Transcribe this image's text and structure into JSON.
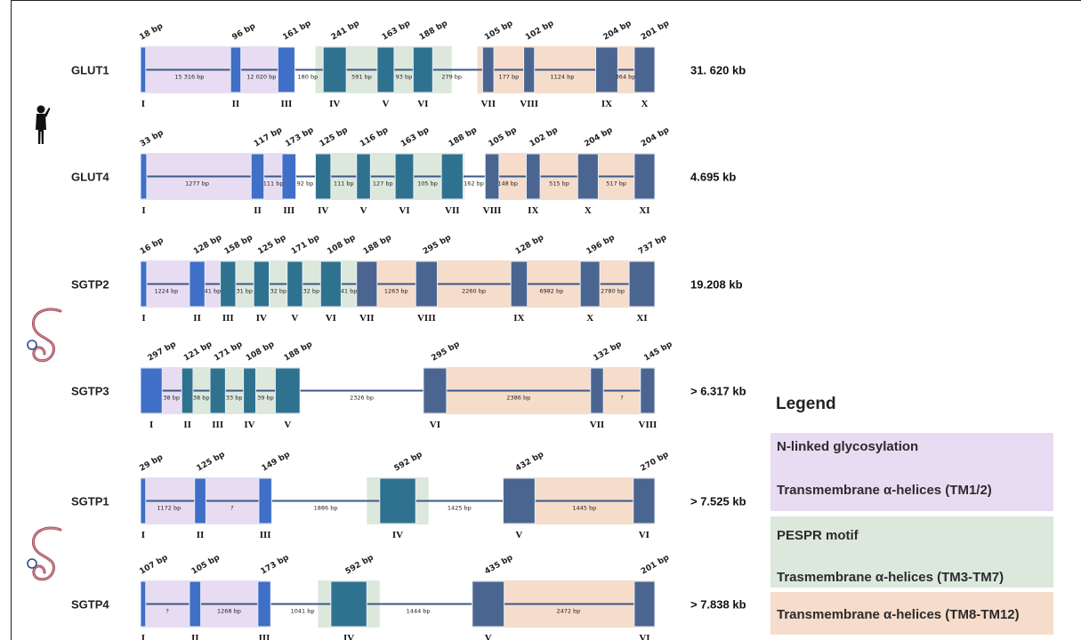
{
  "colors": {
    "purple_region": "#e8dcf2",
    "green_region": "#dde8dd",
    "orange_region": "#f6dccb",
    "exon_blue": "#3f6fc6",
    "exon_teal": "#2f728f",
    "exon_slate": "#4a6690",
    "intron_line": "#3a5a88"
  },
  "genes": [
    {
      "name": "GLUT1",
      "size": "31. 620 kb",
      "regions": [
        {
          "color": "purple",
          "from": 0,
          "to": 2.7
        },
        {
          "color": "green",
          "from": 3.4,
          "to": 6.05
        },
        {
          "color": "orange",
          "from": 6.55,
          "to": 10
        }
      ],
      "exons": [
        {
          "roman": "I",
          "bp": "18 bp",
          "x": 0,
          "w": 0.1,
          "color": "blue"
        },
        {
          "roman": "II",
          "bp": "96 bp",
          "x": 1.75,
          "w": 0.2,
          "color": "blue"
        },
        {
          "roman": "III",
          "bp": "161 bp",
          "x": 2.67,
          "w": 0.33,
          "color": "blue"
        },
        {
          "roman": "IV",
          "bp": "241 bp",
          "x": 3.55,
          "w": 0.45,
          "color": "teal"
        },
        {
          "roman": "V",
          "bp": "163 bp",
          "x": 4.6,
          "w": 0.33,
          "color": "teal"
        },
        {
          "roman": "VI",
          "bp": "188 bp",
          "x": 5.3,
          "w": 0.38,
          "color": "teal"
        },
        {
          "roman": "VII",
          "bp": "105 bp",
          "x": 6.65,
          "w": 0.22,
          "color": "slate"
        },
        {
          "roman": "VIII",
          "bp": "102 bp",
          "x": 7.45,
          "w": 0.21,
          "color": "slate"
        },
        {
          "roman": "IX",
          "bp": "204 bp",
          "x": 8.85,
          "w": 0.43,
          "color": "slate"
        },
        {
          "roman": "X",
          "bp": "201 bp",
          "x": 9.6,
          "w": 0.4,
          "color": "slate"
        }
      ],
      "introns": [
        {
          "label": "15 316 bp",
          "x": 0.95
        },
        {
          "label": "12 020 bp",
          "x": 2.35
        },
        {
          "label": "180 bp",
          "x": 3.25
        },
        {
          "label": "591 bp",
          "x": 4.3
        },
        {
          "label": "93 bp",
          "x": 5.12
        },
        {
          "label": "279 bp",
          "x": 6.05
        },
        {
          "label": "177 bp",
          "x": 7.16
        },
        {
          "label": "1124 bp",
          "x": 8.2
        },
        {
          "label": "364 bp",
          "x": 9.43
        }
      ]
    },
    {
      "name": "GLUT4",
      "size": "4.695 kb",
      "regions": [
        {
          "color": "purple",
          "from": 0,
          "to": 2.8
        },
        {
          "color": "green",
          "from": 3.4,
          "to": 6.3
        },
        {
          "color": "orange",
          "from": 6.7,
          "to": 10
        }
      ],
      "exons": [
        {
          "roman": "I",
          "bp": "33 bp",
          "x": 0,
          "w": 0.12,
          "color": "blue"
        },
        {
          "roman": "II",
          "bp": "117 bp",
          "x": 2.15,
          "w": 0.25,
          "color": "blue"
        },
        {
          "roman": "III",
          "bp": "173 bp",
          "x": 2.75,
          "w": 0.27,
          "color": "blue"
        },
        {
          "roman": "IV",
          "bp": "125 bp",
          "x": 3.4,
          "w": 0.3,
          "color": "teal"
        },
        {
          "roman": "V",
          "bp": "116 bp",
          "x": 4.2,
          "w": 0.27,
          "color": "teal"
        },
        {
          "roman": "VI",
          "bp": "163 bp",
          "x": 4.95,
          "w": 0.36,
          "color": "teal"
        },
        {
          "roman": "VII",
          "bp": "188 bp",
          "x": 5.85,
          "w": 0.42,
          "color": "teal"
        },
        {
          "roman": "VIII",
          "bp": "105 bp",
          "x": 6.7,
          "w": 0.27,
          "color": "slate"
        },
        {
          "roman": "IX",
          "bp": "102 bp",
          "x": 7.5,
          "w": 0.27,
          "color": "slate"
        },
        {
          "roman": "X",
          "bp": "204 bp",
          "x": 8.5,
          "w": 0.4,
          "color": "slate"
        },
        {
          "roman": "XI",
          "bp": "204 bp",
          "x": 9.6,
          "w": 0.4,
          "color": "slate"
        }
      ],
      "introns": [
        {
          "label": "1277 bp",
          "x": 1.1
        },
        {
          "label": "111 bp",
          "x": 2.58
        },
        {
          "label": "92 bp",
          "x": 3.2
        },
        {
          "label": "111 bp",
          "x": 3.95
        },
        {
          "label": "127 bp",
          "x": 4.71
        },
        {
          "label": "105 bp",
          "x": 5.58
        },
        {
          "label": "162 bp",
          "x": 6.48
        },
        {
          "label": "148 bp",
          "x": 7.14
        },
        {
          "label": "515 bp",
          "x": 8.14
        },
        {
          "label": "517 bp",
          "x": 9.25
        }
      ]
    },
    {
      "name": "SGTP2",
      "size": "19.208 kb",
      "regions": [
        {
          "color": "purple",
          "from": 0,
          "to": 1.55
        },
        {
          "color": "green",
          "from": 1.55,
          "to": 4.2
        },
        {
          "color": "orange",
          "from": 4.2,
          "to": 10
        }
      ],
      "exons": [
        {
          "roman": "I",
          "bp": "16 bp",
          "x": 0,
          "w": 0.12,
          "color": "blue"
        },
        {
          "roman": "II",
          "bp": "128 bp",
          "x": 0.95,
          "w": 0.3,
          "color": "blue"
        },
        {
          "roman": "III",
          "bp": "158 bp",
          "x": 1.55,
          "w": 0.3,
          "color": "teal"
        },
        {
          "roman": "IV",
          "bp": "125 bp",
          "x": 2.2,
          "w": 0.3,
          "color": "teal"
        },
        {
          "roman": "V",
          "bp": "171 bp",
          "x": 2.85,
          "w": 0.3,
          "color": "teal"
        },
        {
          "roman": "VI",
          "bp": "108 bp",
          "x": 3.5,
          "w": 0.4,
          "color": "teal"
        },
        {
          "roman": "VII",
          "bp": "188 bp",
          "x": 4.2,
          "w": 0.4,
          "color": "slate"
        },
        {
          "roman": "VIII",
          "bp": "295 bp",
          "x": 5.35,
          "w": 0.42,
          "color": "slate"
        },
        {
          "roman": "IX",
          "bp": "128 bp",
          "x": 7.2,
          "w": 0.32,
          "color": "slate"
        },
        {
          "roman": "X",
          "bp": "196 bp",
          "x": 8.55,
          "w": 0.38,
          "color": "slate"
        },
        {
          "roman": "XI",
          "bp": "737 bp",
          "x": 9.5,
          "w": 0.5,
          "color": "slate"
        }
      ],
      "introns": [
        {
          "label": "1224 bp",
          "x": 0.5
        },
        {
          "label": "41 bp",
          "x": 1.4
        },
        {
          "label": "31 bp",
          "x": 2.02
        },
        {
          "label": "32 bp",
          "x": 2.68
        },
        {
          "label": "32 bp",
          "x": 3.32
        },
        {
          "label": "41 bp",
          "x": 4.05
        },
        {
          "label": "1263 bp",
          "x": 4.97
        },
        {
          "label": "2260 bp",
          "x": 6.48
        },
        {
          "label": "6982 bp",
          "x": 7.99
        },
        {
          "label": "2780 bp",
          "x": 9.18
        }
      ]
    },
    {
      "name": "SGTP3",
      "size": "> 6.317 kb",
      "regions": [
        {
          "color": "purple",
          "from": 0,
          "to": 0.9
        },
        {
          "color": "green",
          "from": 0.9,
          "to": 3.1
        },
        {
          "color": "orange",
          "from": 5.5,
          "to": 10
        }
      ],
      "exons": [
        {
          "roman": "I",
          "bp": "297 bp",
          "x": 0,
          "w": 0.42,
          "color": "blue"
        },
        {
          "roman": "II",
          "bp": "121 bp",
          "x": 0.8,
          "w": 0.22,
          "color": "teal"
        },
        {
          "roman": "III",
          "bp": "171 bp",
          "x": 1.35,
          "w": 0.3,
          "color": "teal"
        },
        {
          "roman": "IV",
          "bp": "108 bp",
          "x": 2.0,
          "w": 0.24,
          "color": "teal"
        },
        {
          "roman": "V",
          "bp": "188 bp",
          "x": 2.62,
          "w": 0.48,
          "color": "teal"
        },
        {
          "roman": "VI",
          "bp": "295 bp",
          "x": 5.5,
          "w": 0.45,
          "color": "slate"
        },
        {
          "roman": "VII",
          "bp": "132 bp",
          "x": 8.75,
          "w": 0.25,
          "color": "slate"
        },
        {
          "roman": "VIII",
          "bp": "145 bp",
          "x": 9.72,
          "w": 0.28,
          "color": "slate"
        }
      ],
      "introns": [
        {
          "label": "38 bp",
          "x": 0.6
        },
        {
          "label": "38 bp",
          "x": 1.18
        },
        {
          "label": "33 bp",
          "x": 1.82
        },
        {
          "label": "39 bp",
          "x": 2.43
        },
        {
          "label": "2326 bp",
          "x": 4.3
        },
        {
          "label": "2386 bp",
          "x": 7.35
        },
        {
          "label": "?",
          "x": 9.36
        }
      ]
    },
    {
      "name": "SGTP1",
      "size": "> 7.525 kb",
      "regions": [
        {
          "color": "purple",
          "from": 0,
          "to": 2.55
        },
        {
          "color": "green",
          "from": 4.4,
          "to": 5.6
        },
        {
          "color": "orange",
          "from": 7.05,
          "to": 10
        }
      ],
      "exons": [
        {
          "roman": "I",
          "bp": "29 bp",
          "x": 0,
          "w": 0.1,
          "color": "blue"
        },
        {
          "roman": "II",
          "bp": "125 bp",
          "x": 1.05,
          "w": 0.22,
          "color": "blue"
        },
        {
          "roman": "III",
          "bp": "149 bp",
          "x": 2.3,
          "w": 0.25,
          "color": "blue"
        },
        {
          "roman": "IV",
          "bp": "592 bp",
          "x": 4.65,
          "w": 0.7,
          "color": "teal"
        },
        {
          "roman": "V",
          "bp": "432 bp",
          "x": 7.05,
          "w": 0.62,
          "color": "slate"
        },
        {
          "roman": "VI",
          "bp": "270 bp",
          "x": 9.58,
          "w": 0.42,
          "color": "slate"
        }
      ],
      "introns": [
        {
          "label": "1172 bp",
          "x": 0.55
        },
        {
          "label": "?",
          "x": 1.78
        },
        {
          "label": "1886 bp",
          "x": 3.6
        },
        {
          "label": "1425 bp",
          "x": 6.2
        },
        {
          "label": "1445 bp",
          "x": 8.63
        }
      ]
    },
    {
      "name": "SGTP4",
      "size": "> 7.838 kb",
      "regions": [
        {
          "color": "purple",
          "from": 0,
          "to": 2.5
        },
        {
          "color": "green",
          "from": 3.45,
          "to": 4.65
        },
        {
          "color": "orange",
          "from": 6.45,
          "to": 10
        }
      ],
      "exons": [
        {
          "roman": "I",
          "bp": "107 bp",
          "x": 0,
          "w": 0.1,
          "color": "blue"
        },
        {
          "roman": "II",
          "bp": "105 bp",
          "x": 0.95,
          "w": 0.22,
          "color": "blue"
        },
        {
          "roman": "III",
          "bp": "173 bp",
          "x": 2.28,
          "w": 0.25,
          "color": "blue"
        },
        {
          "roman": "IV",
          "bp": "592 bp",
          "x": 3.7,
          "w": 0.7,
          "color": "teal"
        },
        {
          "roman": "V",
          "bp": "435 bp",
          "x": 6.45,
          "w": 0.62,
          "color": "slate"
        },
        {
          "roman": "VI",
          "bp": "201 bp",
          "x": 9.6,
          "w": 0.4,
          "color": "slate"
        }
      ],
      "introns": [
        {
          "label": "?",
          "x": 0.52
        },
        {
          "label": "1268 bp",
          "x": 1.72
        },
        {
          "label": "1041 bp",
          "x": 3.15
        },
        {
          "label": "1444 bp",
          "x": 5.4
        },
        {
          "label": "2472 bp",
          "x": 8.32
        }
      ]
    }
  ],
  "legend": {
    "title": "Legend",
    "items": [
      {
        "color": "purple",
        "lines": [
          "N-linked glycosylation",
          "Transmembrane α-helices (TM1/2)"
        ]
      },
      {
        "color": "green",
        "lines": [
          "PESPR motif",
          "Trasmembrane α-helices (TM3-TM7)"
        ]
      },
      {
        "color": "orange",
        "lines": [
          "Transmembrane α-helices (TM8-TM12)"
        ]
      }
    ]
  }
}
